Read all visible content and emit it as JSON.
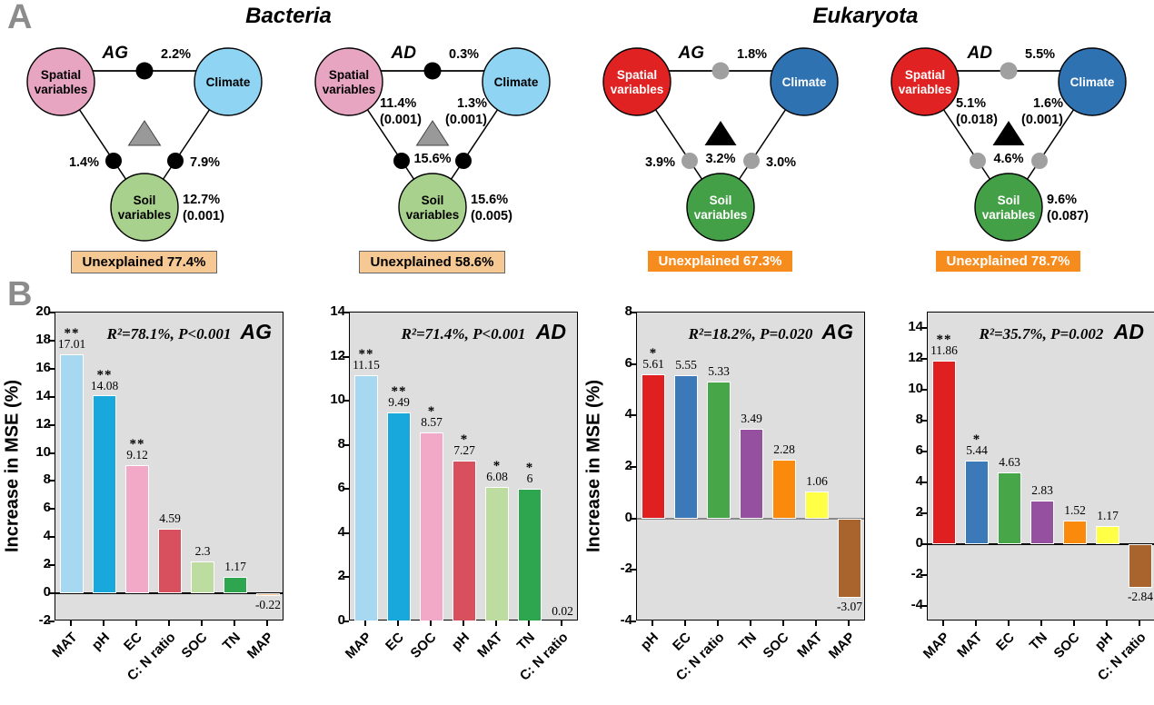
{
  "panel_a": {
    "label": "A",
    "titles": [
      "Bacteria",
      "Eukaryota"
    ],
    "diagrams": [
      {
        "group": "Bacteria",
        "mode": "AG",
        "circles": {
          "spatial": "Spatial variables",
          "climate": "Climate",
          "soil": "Soil variables"
        },
        "top_pct": "2.2%",
        "left_pct": "1.4%",
        "right_pct": "7.9%",
        "triangle_pct": "",
        "spatial_side": [],
        "climate_side": [],
        "soil_side": [
          "12.7%",
          "(0.001)"
        ],
        "unexplained": "Unexplained 77.4%",
        "style": {
          "spatial": "#E8A5C2",
          "climate": "#8FD4F2",
          "soil": "#A9D18E",
          "label_color": "#000000",
          "dot": "#000000",
          "triangle": "#999999",
          "triangle_stroke": "#444444",
          "box_bg": "#F5C894",
          "box_color": "#000000",
          "box_border": "#666666"
        }
      },
      {
        "group": "Bacteria",
        "mode": "AD",
        "circles": {
          "spatial": "Spatial variables",
          "climate": "Climate",
          "soil": "Soil variables"
        },
        "top_pct": "0.3%",
        "left_pct": "",
        "right_pct": "",
        "triangle_pct": "15.6%",
        "spatial_side": [
          "11.4%",
          "(0.001)"
        ],
        "climate_side": [
          "1.3%",
          "(0.001)"
        ],
        "soil_side": [
          "15.6%",
          "(0.005)"
        ],
        "unexplained": "Unexplained 58.6%",
        "style": {
          "spatial": "#E8A5C2",
          "climate": "#8FD4F2",
          "soil": "#A9D18E",
          "label_color": "#000000",
          "dot": "#000000",
          "triangle": "#999999",
          "triangle_stroke": "#444444",
          "box_bg": "#F5C894",
          "box_color": "#000000",
          "box_border": "#666666"
        }
      },
      {
        "group": "Eukaryota",
        "mode": "AG",
        "circles": {
          "spatial": "Spatial variables",
          "climate": "Climate",
          "soil": "Soil variables"
        },
        "top_pct": "1.8%",
        "left_pct": "3.9%",
        "right_pct": "3.0%",
        "triangle_pct": "3.2%",
        "spatial_side": [],
        "climate_side": [],
        "soil_side": [],
        "unexplained": "Unexplained 67.3%",
        "style": {
          "spatial": "#E02222",
          "climate": "#2F72B2",
          "soil": "#43A047",
          "label_color": "#ffffff",
          "dot": "#A0A0A0",
          "triangle": "#000000",
          "triangle_stroke": "none",
          "box_bg": "#F68B1E",
          "box_color": "#ffffff",
          "box_border": "none"
        }
      },
      {
        "group": "Eukaryota",
        "mode": "AD",
        "circles": {
          "spatial": "Spatial variables",
          "climate": "Climate",
          "soil": "Soil variables"
        },
        "top_pct": "5.5%",
        "left_pct": "",
        "right_pct": "",
        "triangle_pct": "4.6%",
        "spatial_side": [
          "5.1%",
          "(0.018)"
        ],
        "climate_side": [
          "1.6%",
          "(0.001)"
        ],
        "soil_side": [
          "9.6%",
          "(0.087)"
        ],
        "unexplained": "Unexplained 78.7%",
        "style": {
          "spatial": "#E02222",
          "climate": "#2F72B2",
          "soil": "#43A047",
          "label_color": "#ffffff",
          "dot": "#A0A0A0",
          "triangle": "#000000",
          "triangle_stroke": "none",
          "box_bg": "#F68B1E",
          "box_color": "#ffffff",
          "box_border": "none"
        }
      }
    ]
  },
  "panel_b": {
    "label": "B"
  },
  "chart_data": [
    {
      "type": "bar",
      "group": "Bacteria",
      "corner_label": "AG",
      "annotation": "R²=78.1%, P<0.001",
      "ylabel": "Increase in MSE (%)",
      "show_ylabel": true,
      "ylim": [
        -2,
        20
      ],
      "yticks": [
        -2,
        0,
        2,
        4,
        6,
        8,
        10,
        12,
        14,
        16,
        18,
        20
      ],
      "zero_line": "#000000",
      "grid": false,
      "plot_bg": "#dedede",
      "categories": [
        "MAT",
        "pH",
        "EC",
        "C: N ratio",
        "SOC",
        "TN",
        "MAP"
      ],
      "values": [
        17.01,
        14.08,
        9.12,
        4.59,
        2.3,
        1.17,
        -0.22
      ],
      "value_labels": [
        "17.01",
        "14.08",
        "9.12",
        "4.59",
        "2.3",
        "1.17",
        "-0.22"
      ],
      "sig": [
        "**",
        "**",
        "**",
        "",
        "",
        "",
        ""
      ],
      "colors": [
        "#A6D8F2",
        "#18A8DC",
        "#F2A9C8",
        "#D8505E",
        "#BCDCA0",
        "#2EA650",
        "#F2C18C"
      ]
    },
    {
      "type": "bar",
      "group": "Bacteria",
      "corner_label": "AD",
      "annotation": "R²=71.4%, P<0.001",
      "ylabel": "Increase in MSE (%)",
      "show_ylabel": false,
      "ylim": [
        0,
        14
      ],
      "yticks": [
        0,
        2,
        4,
        6,
        8,
        10,
        12,
        14
      ],
      "zero_line": null,
      "grid": false,
      "plot_bg": "#dedede",
      "categories": [
        "MAP",
        "EC",
        "SOC",
        "pH",
        "MAT",
        "TN",
        "C: N ratio"
      ],
      "values": [
        11.15,
        9.49,
        8.57,
        7.27,
        6.08,
        6,
        0.02
      ],
      "value_labels": [
        "11.15",
        "9.49",
        "8.57",
        "7.27",
        "6.08",
        "6",
        "0.02"
      ],
      "sig": [
        "**",
        "**",
        "*",
        "*",
        "*",
        "*",
        ""
      ],
      "colors": [
        "#A6D8F2",
        "#18A8DC",
        "#F2A9C8",
        "#D8505E",
        "#BCDCA0",
        "#2EA650",
        "#F2C18C"
      ]
    },
    {
      "type": "bar",
      "group": "Eukaryota",
      "corner_label": "AG",
      "annotation": "R²=18.2%, P=0.020",
      "ylabel": "Increase in MSE (%)",
      "show_ylabel": true,
      "ylim": [
        -4,
        8
      ],
      "yticks": [
        -4,
        -2,
        0,
        2,
        4,
        6,
        8
      ],
      "zero_line": "#8a8a8a",
      "grid": false,
      "plot_bg": "#dedede",
      "categories": [
        "pH",
        "EC",
        "C: N ratio",
        "TN",
        "SOC",
        "MAT",
        "MAP"
      ],
      "values": [
        5.61,
        5.55,
        5.33,
        3.49,
        2.28,
        1.06,
        -3.07
      ],
      "value_labels": [
        "5.61",
        "5.55",
        "5.33",
        "3.49",
        "2.28",
        "1.06",
        "-3.07"
      ],
      "sig": [
        "*",
        "",
        "",
        "",
        "",
        "",
        ""
      ],
      "colors": [
        "#E02020",
        "#3B79B8",
        "#46A648",
        "#95519F",
        "#F98A0B",
        "#FFFF45",
        "#A9632C"
      ]
    },
    {
      "type": "bar",
      "group": "Eukaryota",
      "corner_label": "AD",
      "annotation": "R²=35.7%, P=0.002",
      "ylabel": "Increase in MSE (%)",
      "show_ylabel": false,
      "ylim": [
        -5,
        15
      ],
      "yticks": [
        -4,
        -2,
        0,
        2,
        4,
        6,
        8,
        10,
        12,
        14
      ],
      "zero_line": "#000000",
      "grid": false,
      "plot_bg": "#dedede",
      "categories": [
        "MAP",
        "MAT",
        "EC",
        "TN",
        "SOC",
        "pH",
        "C: N ratio"
      ],
      "values": [
        11.86,
        5.44,
        4.63,
        2.83,
        1.52,
        1.17,
        -2.84
      ],
      "value_labels": [
        "11.86",
        "5.44",
        "4.63",
        "2.83",
        "1.52",
        "1.17",
        "-2.84"
      ],
      "sig": [
        "**",
        "*",
        "",
        "",
        "",
        "",
        ""
      ],
      "colors": [
        "#E02020",
        "#3B79B8",
        "#46A648",
        "#95519F",
        "#F98A0B",
        "#FFFF45",
        "#A9632C"
      ]
    }
  ]
}
